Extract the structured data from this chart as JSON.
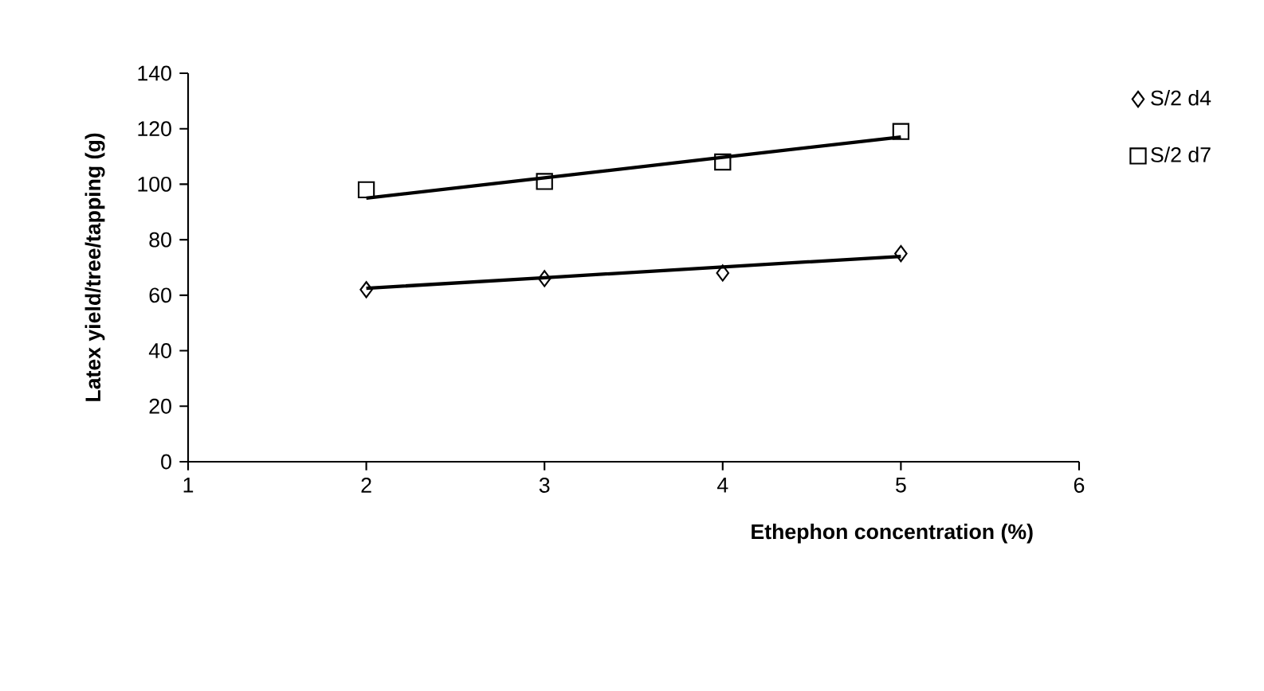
{
  "chart_data": {
    "type": "scatter",
    "xlabel": "Ethephon concentration (%)",
    "ylabel": "Latex yield/tree/tapping (g)",
    "x": [
      2,
      3,
      4,
      5
    ],
    "series": [
      {
        "name": "S/2 d4",
        "color": "#000000",
        "marker": "diamond",
        "values": [
          62,
          66,
          68,
          75
        ]
      },
      {
        "name": "S/2 d7",
        "color": "#000000",
        "marker": "square",
        "values": [
          98,
          101,
          108,
          119
        ]
      },
      {
        "type": "line",
        "color": "#000000",
        "marker": "none",
        "values": [
          62.5,
          66.3,
          70.2,
          74
        ]
      },
      {
        "type": "line",
        "color": "#000000",
        "marker": "none",
        "values": [
          95,
          102.3,
          109.7,
          117
        ]
      }
    ],
    "xlim": [
      1,
      6
    ],
    "xticks": [
      1,
      2,
      3,
      4,
      5,
      6
    ],
    "ylim": [
      0,
      140
    ],
    "yticks": [
      0,
      20,
      40,
      60,
      80,
      100,
      120,
      140
    ],
    "grid": false,
    "legend": "right"
  }
}
